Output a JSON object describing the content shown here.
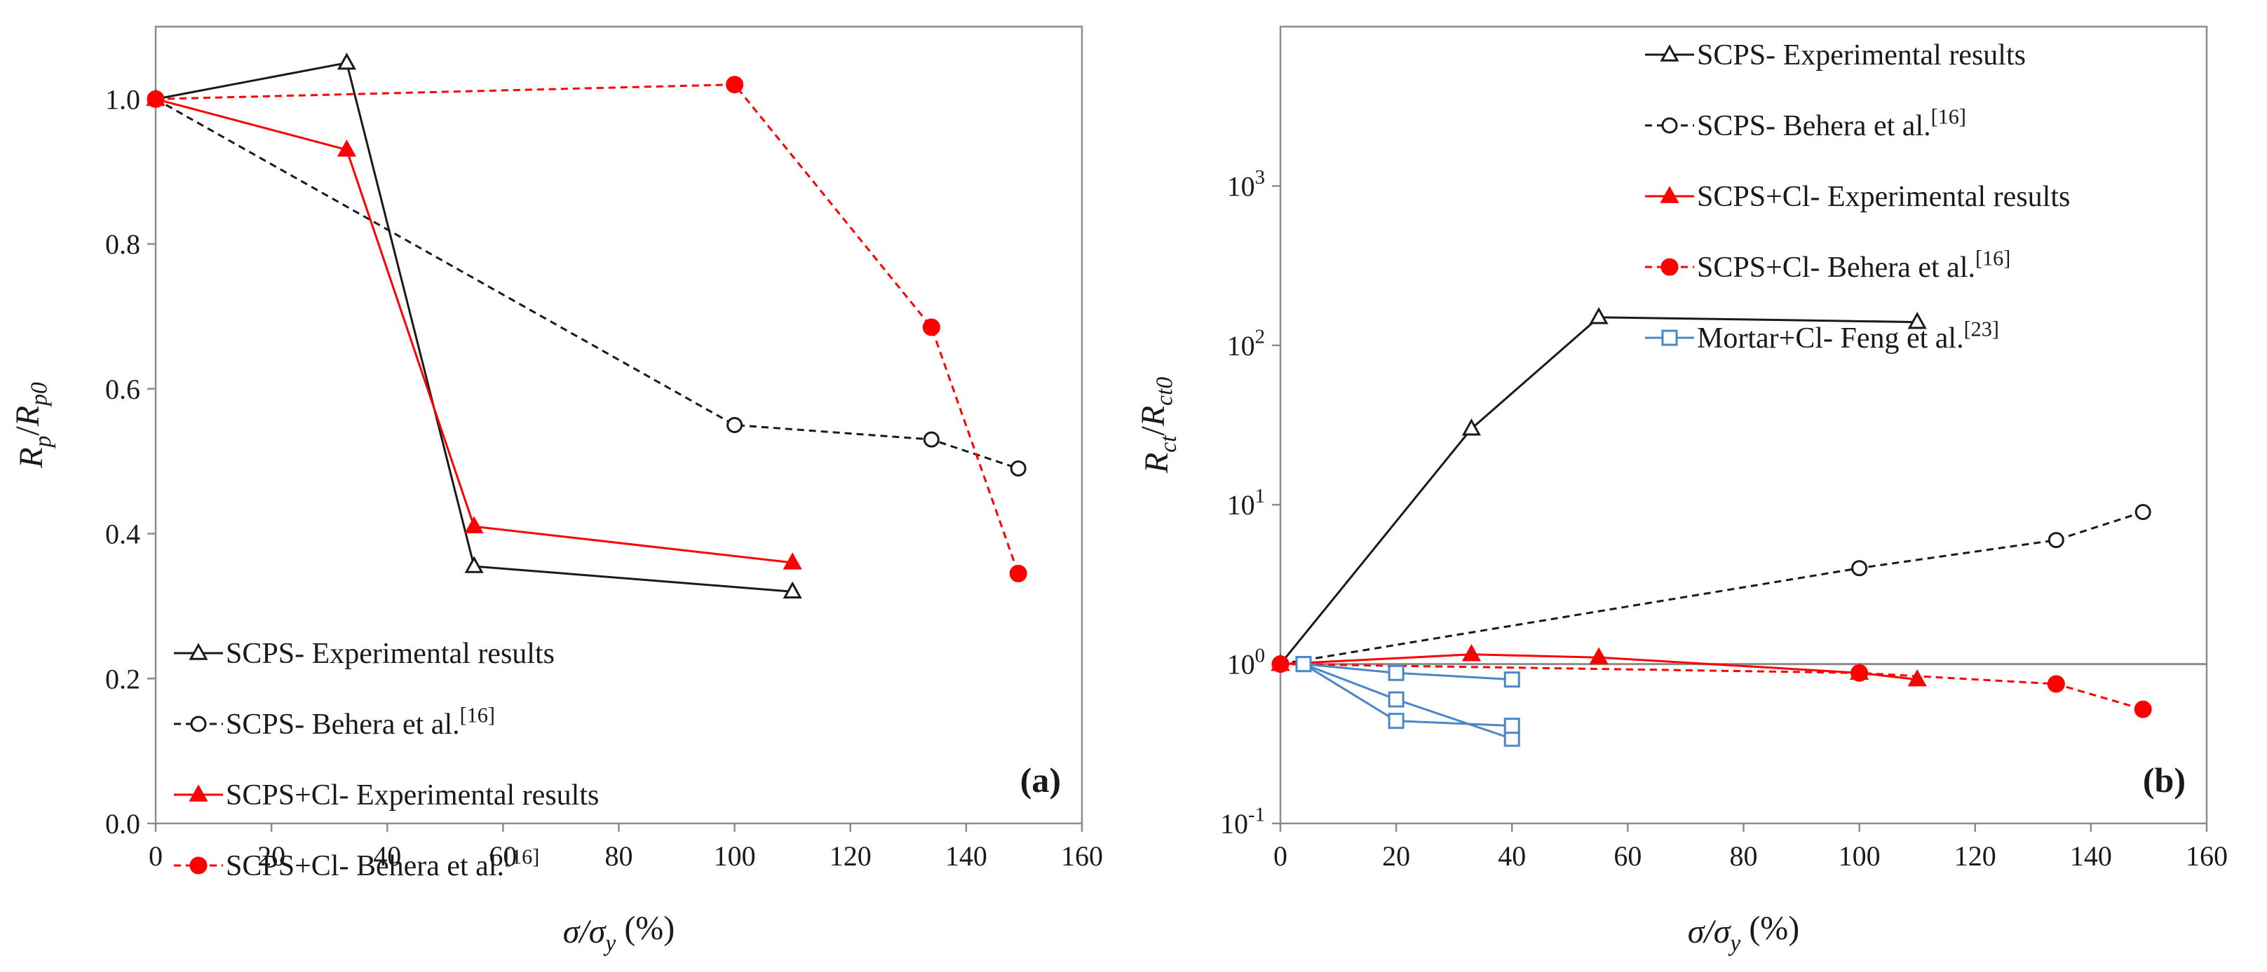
{
  "chart_data": [
    {
      "panel_label": "(a)",
      "type": "line",
      "xlabel": "σ/σy (%)",
      "ylabel": "Rp/Rp0",
      "xlim": [
        0,
        160
      ],
      "ylim": [
        0,
        1.1
      ],
      "x_ticks": [
        "0",
        "20",
        "40",
        "60",
        "80",
        "100",
        "120",
        "140",
        "160"
      ],
      "y_ticks": [
        "0.0",
        "0.2",
        "0.4",
        "0.6",
        "0.8",
        "1.0"
      ],
      "legend_position": "bottom-left",
      "series": [
        {
          "name": "SCPS- Experimental results",
          "color": "#1a1a1a",
          "dash": "solid",
          "marker": "open-triangle",
          "x": [
            0,
            33,
            55,
            110
          ],
          "y": [
            1.0,
            1.05,
            0.355,
            0.32
          ]
        },
        {
          "name": "SCPS- Behera et al.[16]",
          "color": "#1a1a1a",
          "dash": "dashed",
          "marker": "open-circle",
          "x": [
            0,
            100,
            134,
            149
          ],
          "y": [
            1.0,
            0.55,
            0.53,
            0.49
          ]
        },
        {
          "name": "SCPS+Cl- Experimental results",
          "color": "#ff0000",
          "dash": "solid",
          "marker": "filled-triangle",
          "x": [
            0,
            33,
            55,
            110
          ],
          "y": [
            1.0,
            0.93,
            0.41,
            0.36
          ]
        },
        {
          "name": "SCPS+Cl- Behera et al.[16]",
          "color": "#ff0000",
          "dash": "dashed",
          "marker": "filled-circle",
          "x": [
            0,
            100,
            134,
            149
          ],
          "y": [
            1.0,
            1.02,
            0.685,
            0.345
          ]
        }
      ]
    },
    {
      "panel_label": "(b)",
      "type": "line",
      "yscale": "log",
      "xlabel": "σ/σy (%)",
      "ylabel": "Rct/Rct0",
      "xlim": [
        0,
        160
      ],
      "ylim": [
        0.1,
        10000
      ],
      "x_ticks": [
        "0",
        "20",
        "40",
        "60",
        "80",
        "100",
        "120",
        "140",
        "160"
      ],
      "y_ticks": [
        "10-1",
        "100",
        "101",
        "102",
        "103"
      ],
      "reference_line_y": 1,
      "legend_position": "top-right",
      "series": [
        {
          "name": "SCPS- Experimental results",
          "color": "#1a1a1a",
          "dash": "solid",
          "marker": "open-triangle",
          "x": [
            0,
            33,
            55,
            110
          ],
          "y": [
            1.0,
            30,
            150,
            140
          ]
        },
        {
          "name": "SCPS- Behera et al.[16]",
          "color": "#1a1a1a",
          "dash": "dashed",
          "marker": "open-circle",
          "x": [
            0,
            100,
            134,
            149
          ],
          "y": [
            1.0,
            4.0,
            6.0,
            9.0
          ]
        },
        {
          "name": "SCPS+Cl- Experimental results",
          "color": "#ff0000",
          "dash": "solid",
          "marker": "filled-triangle",
          "x": [
            0,
            33,
            55,
            100,
            110
          ],
          "y": [
            1.0,
            1.15,
            1.1,
            0.88,
            0.8
          ]
        },
        {
          "name": "SCPS+Cl- Behera et al.[16]",
          "color": "#ff0000",
          "dash": "dashed",
          "marker": "filled-circle",
          "x": [
            0,
            100,
            134,
            149
          ],
          "y": [
            1.0,
            0.88,
            0.75,
            0.52
          ]
        },
        {
          "name": "Mortar+Cl- Feng et al.[23]",
          "color": "#4a86c8",
          "dash": "solid",
          "marker": "open-square",
          "groups": [
            {
              "x": [
                4,
                20,
                40
              ],
              "y": [
                1.0,
                0.88,
                0.8
              ]
            },
            {
              "x": [
                4,
                20,
                40
              ],
              "y": [
                1.0,
                0.6,
                0.34
              ]
            },
            {
              "x": [
                4,
                20,
                40
              ],
              "y": [
                1.0,
                0.44,
                0.41
              ]
            }
          ]
        }
      ]
    }
  ]
}
